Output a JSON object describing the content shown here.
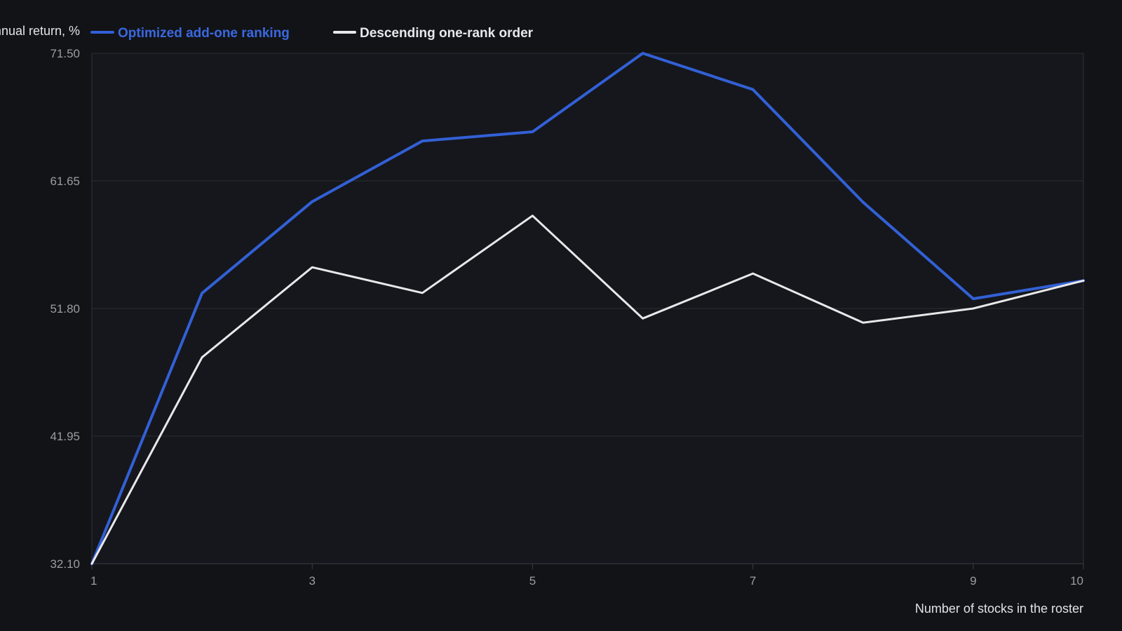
{
  "chart_data": {
    "type": "line",
    "title": "",
    "xlabel": "Number of stocks in the roster",
    "ylabel": "Annual return, %",
    "x": [
      1,
      2,
      3,
      4,
      5,
      6,
      7,
      8,
      9,
      10
    ],
    "x_ticks": [
      1,
      3,
      5,
      7,
      9,
      10
    ],
    "y_ticks": [
      "32.10",
      "41.95",
      "51.80",
      "61.65",
      "71.50"
    ],
    "xlim": [
      1,
      10
    ],
    "ylim": [
      32.1,
      71.5
    ],
    "grid": true,
    "legend_position": "top-left",
    "series": [
      {
        "name": "Optimized add-one ranking",
        "color": "#3260d6",
        "values": [
          32.1,
          52.98,
          60.05,
          64.73,
          65.44,
          71.5,
          68.7,
          60.0,
          52.55,
          53.95
        ]
      },
      {
        "name": "Descending one-rank order",
        "color": "#e8e8ea",
        "values": [
          32.1,
          48.03,
          54.98,
          53.0,
          58.96,
          51.03,
          54.5,
          50.7,
          51.8,
          53.95
        ]
      }
    ]
  }
}
